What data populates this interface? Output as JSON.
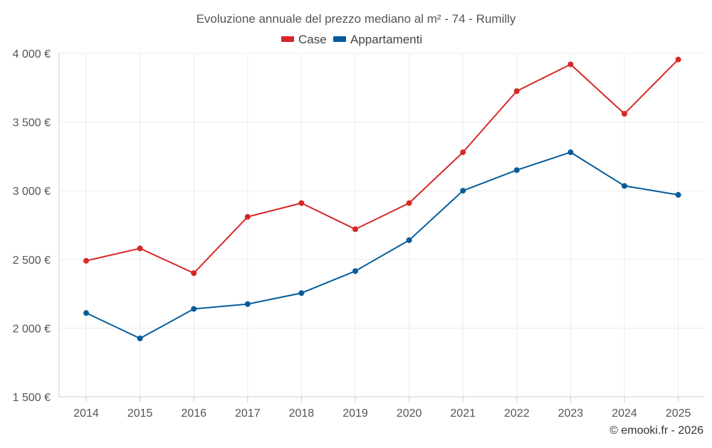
{
  "chart_data": {
    "type": "line",
    "title": "Evoluzione annuale del prezzo mediano al m² - 74 - Rumilly",
    "x": [
      "2014",
      "2015",
      "2016",
      "2017",
      "2018",
      "2019",
      "2020",
      "2021",
      "2022",
      "2023",
      "2024",
      "2025"
    ],
    "series": [
      {
        "name": "Case",
        "color": "#d62728",
        "values": [
          2490,
          2580,
          2400,
          2810,
          2910,
          2720,
          2910,
          3280,
          3725,
          3920,
          3560,
          3955
        ]
      },
      {
        "name": "Appartamenti",
        "color": "#045c9b",
        "values": [
          2110,
          1925,
          2140,
          2175,
          2255,
          2415,
          2640,
          3000,
          3150,
          3280,
          3035,
          2970
        ]
      }
    ],
    "ylim": [
      1500,
      4000
    ],
    "yticks": [
      {
        "value": 1500,
        "label": "1 500 €"
      },
      {
        "value": 2000,
        "label": "2 000 €"
      },
      {
        "value": 2500,
        "label": "2 500 €"
      },
      {
        "value": 3000,
        "label": "3 000 €"
      },
      {
        "value": 3500,
        "label": "3 500 €"
      },
      {
        "value": 4000,
        "label": "4 000 €"
      }
    ],
    "xlabel": "",
    "ylabel": "",
    "grid": true,
    "legend": "top-center",
    "credit": "© emooki.fr - 2026"
  }
}
